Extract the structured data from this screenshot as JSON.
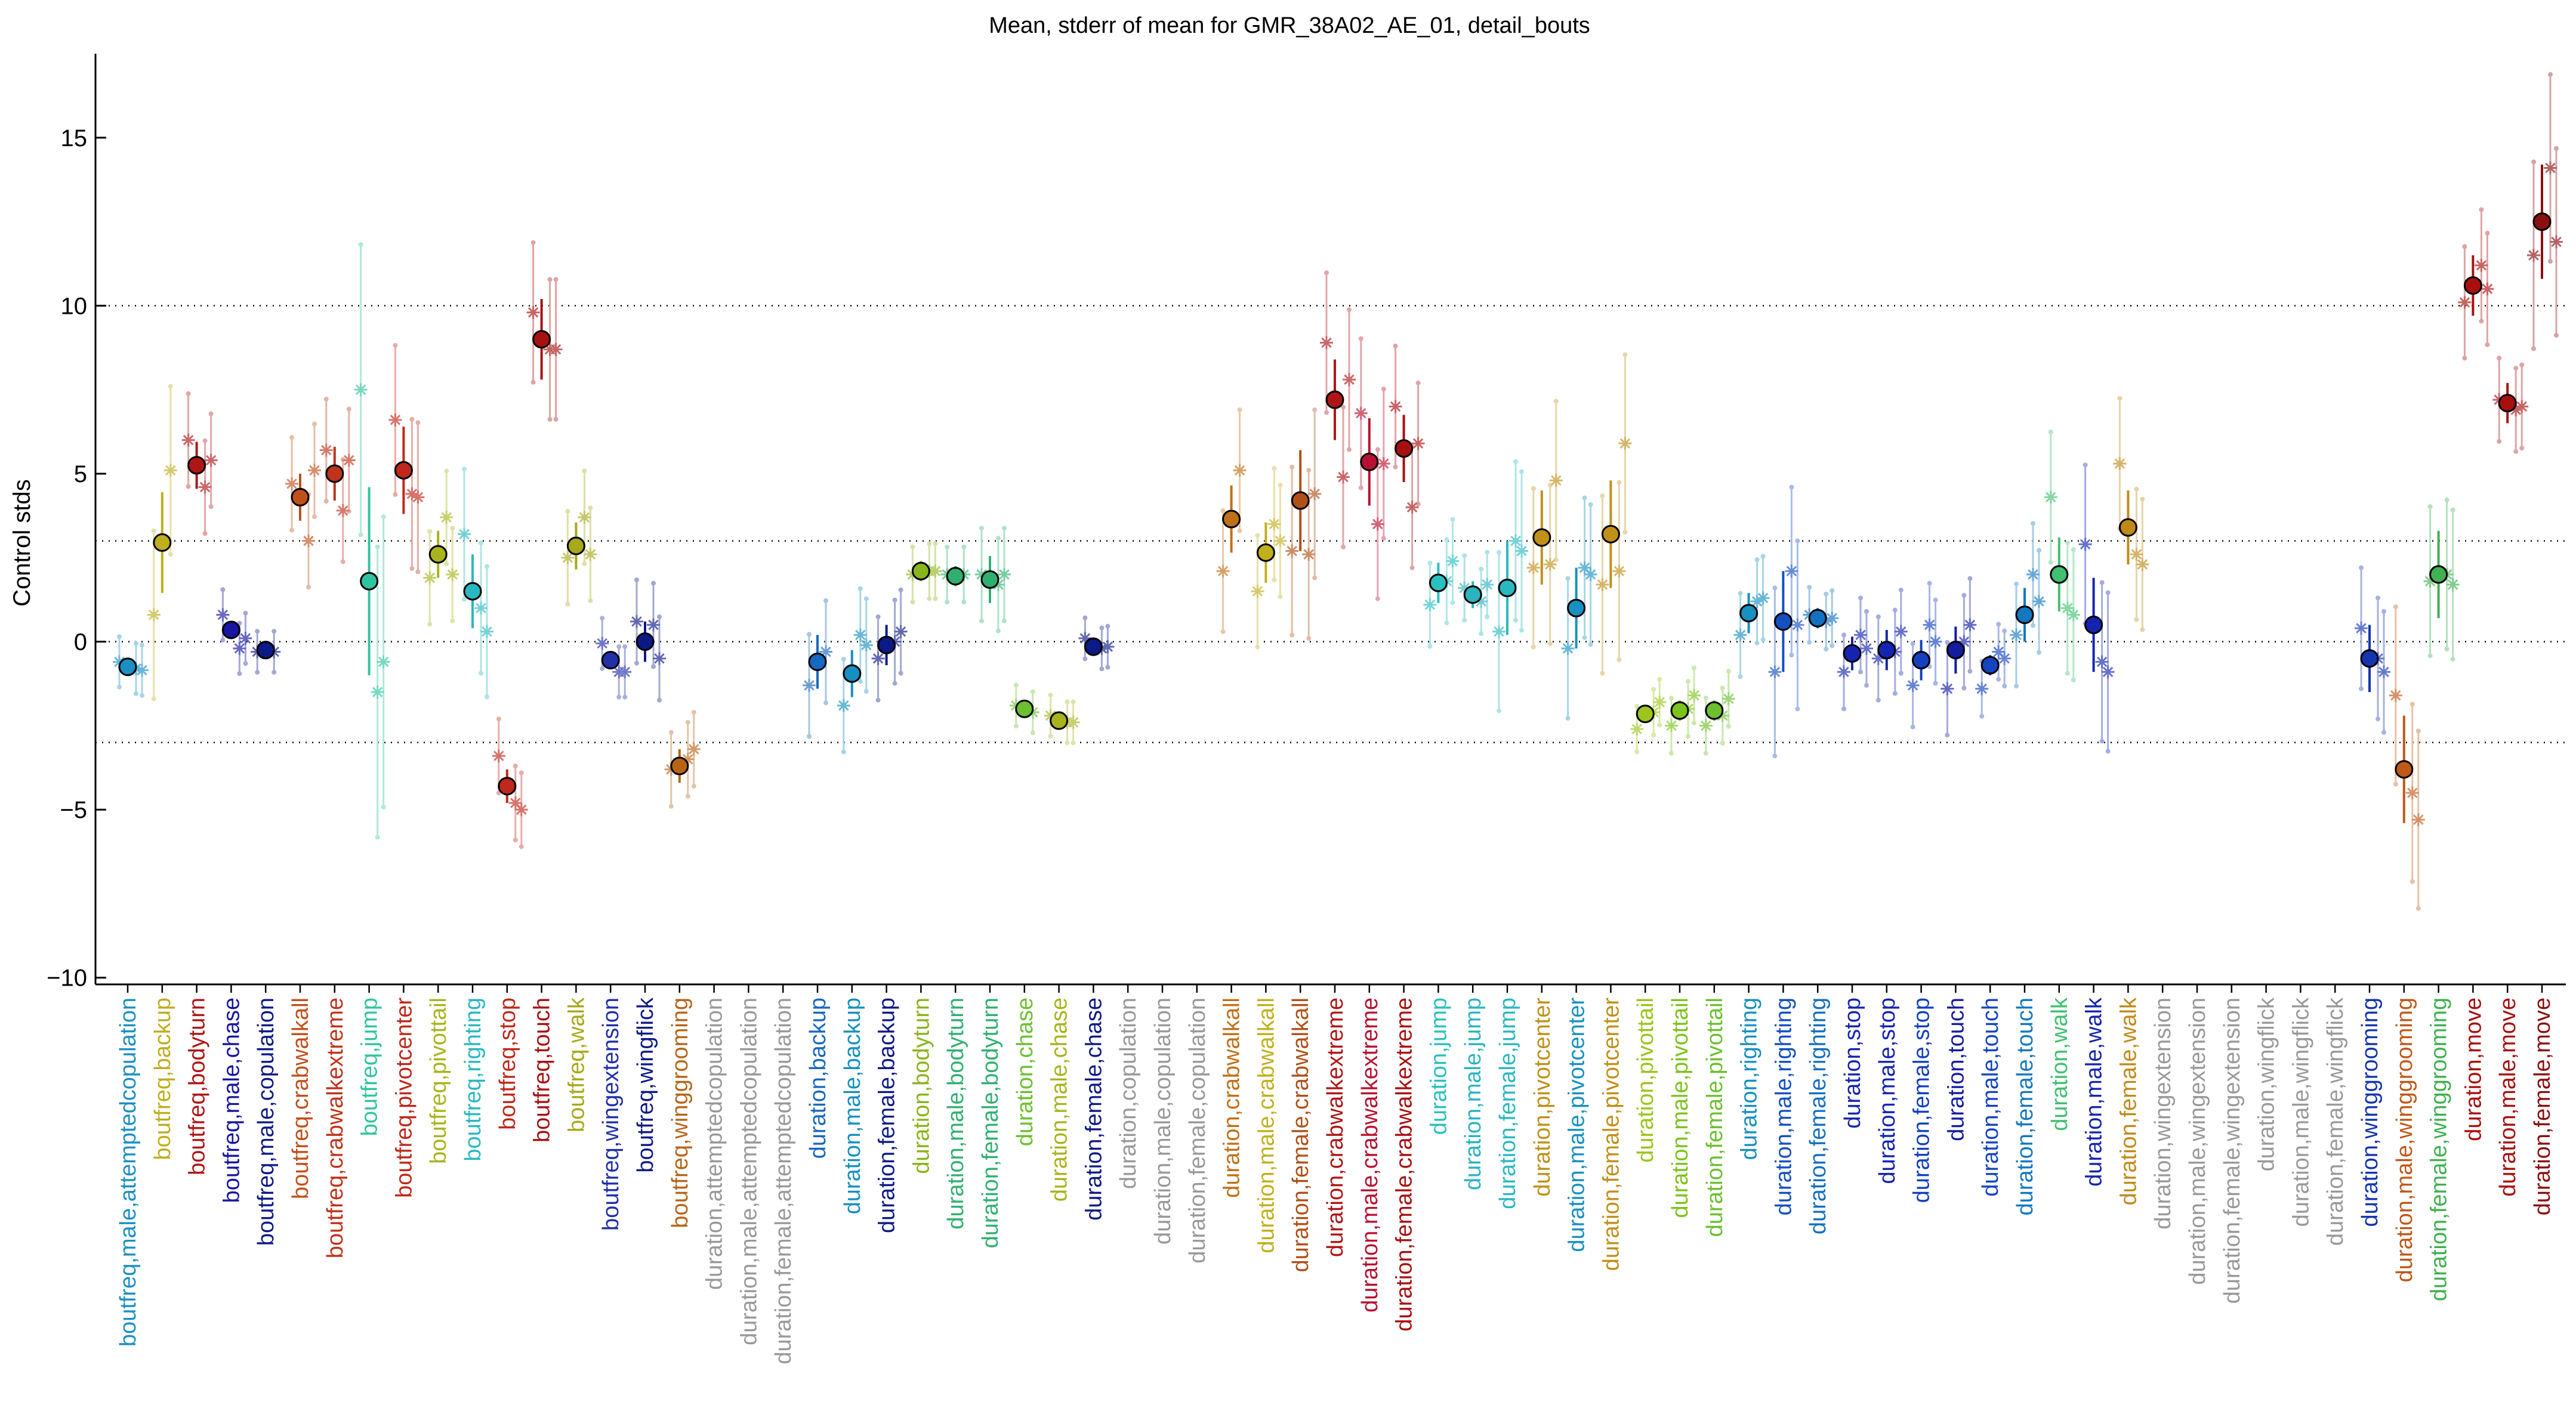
{
  "chart_data": {
    "type": "scatter",
    "title": "Mean, stderr of mean for GMR_38A02_AE_01, detail_bouts",
    "ylabel": "Control stds",
    "xlabel": "",
    "ylim": [
      -10.2,
      17.5
    ],
    "yticks": [
      -10,
      -5,
      0,
      5,
      10,
      15
    ],
    "reference_lines": [
      10,
      3,
      0,
      -3
    ],
    "grid": false,
    "categories": [
      "boutfreq,male,attemptedcopulation",
      "boutfreq,backup",
      "boutfreq,bodyturn",
      "boutfreq,male,chase",
      "boutfreq,male,copulation",
      "boutfreq,crabwalkall",
      "boutfreq,crabwalkextreme",
      "boutfreq,jump",
      "boutfreq,pivotcenter",
      "boutfreq,pivottail",
      "boutfreq,righting",
      "boutfreq,stop",
      "boutfreq,touch",
      "boutfreq,walk",
      "boutfreq,wingextension",
      "boutfreq,wingflick",
      "boutfreq,winggrooming",
      "duration,attemptedcopulation",
      "duration,male,attemptedcopulation",
      "duration,female,attemptedcopulation",
      "duration,backup",
      "duration,male,backup",
      "duration,female,backup",
      "duration,bodyturn",
      "duration,male,bodyturn",
      "duration,female,bodyturn",
      "duration,chase",
      "duration,male,chase",
      "duration,female,chase",
      "duration,copulation",
      "duration,male,copulation",
      "duration,female,copulation",
      "duration,crabwalkall",
      "duration,male,crabwalkall",
      "duration,female,crabwalkall",
      "duration,crabwalkextreme",
      "duration,male,crabwalkextreme",
      "duration,female,crabwalkextreme",
      "duration,jump",
      "duration,male,jump",
      "duration,female,jump",
      "duration,pivotcenter",
      "duration,male,pivotcenter",
      "duration,female,pivotcenter",
      "duration,pivottail",
      "duration,male,pivottail",
      "duration,female,pivottail",
      "duration,righting",
      "duration,male,righting",
      "duration,female,righting",
      "duration,stop",
      "duration,male,stop",
      "duration,female,stop",
      "duration,touch",
      "duration,male,touch",
      "duration,female,touch",
      "duration,walk",
      "duration,male,walk",
      "duration,female,walk",
      "duration,wingextension",
      "duration,male,wingextension",
      "duration,female,wingextension",
      "duration,wingflick",
      "duration,male,wingflick",
      "duration,female,wingflick",
      "duration,winggrooming",
      "duration,male,winggrooming",
      "duration,female,winggrooming",
      "duration,move",
      "duration,male,move",
      "duration,female,move"
    ],
    "label_colors": [
      "#1b8fc4",
      "#bfae1d",
      "#b01515",
      "#1616a0",
      "#0c1a86",
      "#c0501b",
      "#c0321b",
      "#2fc4a0",
      "#c0281b",
      "#a8b41b",
      "#2ab8c0",
      "#c0281b",
      "#a81010",
      "#a8a81b",
      "#2030a8",
      "#0c1a86",
      "#b86418",
      "#999999",
      "#999999",
      "#999999",
      "#1668c0",
      "#1690c0",
      "#0c1a86",
      "#8ab41b",
      "#30b070",
      "#30b070",
      "#6cc030",
      "#a8b41b",
      "#0c1a86",
      "#999999",
      "#999999",
      "#999999",
      "#c07018",
      "#c0b01b",
      "#b05018",
      "#b01515",
      "#b81030",
      "#a81010",
      "#2ac0c0",
      "#2ab4c0",
      "#2ab8c0",
      "#c09018",
      "#1890c0",
      "#c09018",
      "#9cc41b",
      "#7cc41b",
      "#6cc030",
      "#1890c0",
      "#1450c0",
      "#1470c0",
      "#1424b0",
      "#1424b0",
      "#1440c0",
      "#141ca0",
      "#1444c0",
      "#1478c0",
      "#40c070",
      "#1424b0",
      "#c08a18",
      "#999999",
      "#999999",
      "#999999",
      "#999999",
      "#999999",
      "#999999",
      "#1434b0",
      "#c05818",
      "#40b050",
      "#a81010",
      "#a81010",
      "#8a1010"
    ],
    "series": [
      {
        "role": "mean",
        "values": [
          -0.75,
          2.95,
          5.25,
          0.35,
          -0.25,
          4.3,
          5.0,
          1.8,
          5.1,
          2.6,
          1.5,
          -4.3,
          9.0,
          2.85,
          -0.55,
          0.0,
          -3.7,
          null,
          null,
          null,
          -0.6,
          -0.95,
          -0.1,
          2.1,
          1.95,
          1.85,
          -2.0,
          -2.35,
          -0.15,
          null,
          null,
          null,
          3.65,
          2.65,
          4.2,
          7.2,
          5.35,
          5.75,
          1.75,
          1.4,
          1.6,
          3.1,
          1.0,
          3.2,
          -2.15,
          -2.05,
          -2.05,
          0.85,
          0.6,
          0.7,
          -0.35,
          -0.25,
          -0.55,
          -0.25,
          -0.7,
          0.8,
          2.0,
          0.5,
          3.4,
          null,
          null,
          null,
          null,
          null,
          null,
          -0.5,
          -3.8,
          2.0,
          10.6,
          7.1,
          12.5
        ],
        "stderr": [
          0.25,
          1.5,
          0.7,
          0.25,
          0.15,
          0.7,
          0.8,
          2.8,
          1.3,
          0.7,
          1.1,
          0.5,
          1.2,
          0.7,
          0.25,
          0.6,
          0.5,
          null,
          null,
          null,
          0.8,
          0.7,
          0.6,
          0.3,
          0.3,
          0.7,
          0.15,
          0.15,
          0.15,
          null,
          null,
          null,
          1.0,
          0.9,
          1.5,
          1.2,
          1.3,
          1.0,
          0.6,
          0.4,
          1.4,
          1.4,
          1.2,
          1.6,
          0.2,
          0.3,
          0.3,
          0.6,
          1.5,
          0.3,
          0.5,
          0.6,
          0.6,
          0.7,
          0.3,
          0.8,
          1.1,
          1.4,
          1.1,
          null,
          null,
          null,
          null,
          null,
          null,
          1.0,
          1.6,
          1.3,
          0.9,
          0.6,
          1.7
        ]
      },
      {
        "role": "replicate_a",
        "values": [
          -0.6,
          0.8,
          6.0,
          0.8,
          -0.3,
          4.7,
          5.7,
          7.5,
          6.6,
          1.9,
          3.2,
          -3.4,
          9.8,
          2.5,
          -0.05,
          0.6,
          -3.8,
          null,
          null,
          null,
          -1.3,
          -1.9,
          -0.5,
          2.0,
          2.0,
          2.0,
          -1.9,
          -2.2,
          0.1,
          null,
          null,
          null,
          2.1,
          1.5,
          2.7,
          8.9,
          6.8,
          7.0,
          1.1,
          1.6,
          0.3,
          2.2,
          -0.2,
          1.7,
          -2.6,
          -2.5,
          -2.5,
          0.2,
          -0.9,
          0.8,
          -0.9,
          -0.5,
          -1.3,
          -1.4,
          -1.4,
          0.2,
          4.3,
          2.9,
          5.3,
          null,
          null,
          null,
          null,
          null,
          null,
          0.4,
          -1.6,
          1.8,
          10.1,
          7.2,
          11.5
        ]
      },
      {
        "role": "replicate_b",
        "values": [
          -0.8,
          5.1,
          4.6,
          -0.2,
          -0.3,
          3.0,
          3.9,
          -1.5,
          4.4,
          3.7,
          1.0,
          -4.8,
          8.7,
          3.7,
          -0.9,
          0.5,
          -3.5,
          null,
          null,
          null,
          -0.3,
          0.2,
          0.0,
          2.1,
          2.0,
          1.7,
          -2.1,
          -2.4,
          -0.2,
          null,
          null,
          null,
          5.1,
          3.5,
          2.6,
          4.9,
          3.5,
          4.0,
          1.8,
          1.2,
          3.0,
          2.3,
          2.2,
          2.1,
          -2.1,
          -2.0,
          -2.2,
          1.2,
          2.1,
          0.6,
          0.2,
          -0.3,
          0.5,
          0.0,
          -0.3,
          2.0,
          1.0,
          -0.6,
          2.6,
          null,
          null,
          null,
          null,
          null,
          null,
          -0.5,
          -4.5,
          2.0,
          11.2,
          6.9,
          14.1
        ]
      },
      {
        "role": "replicate_c",
        "values": [
          -0.85,
          null,
          5.4,
          0.1,
          null,
          5.1,
          5.4,
          -0.6,
          4.3,
          2.0,
          0.3,
          -5.0,
          8.7,
          2.6,
          -0.9,
          -0.5,
          -3.2,
          null,
          null,
          null,
          null,
          -0.1,
          0.3,
          2.1,
          null,
          2.0,
          null,
          -2.4,
          -0.15,
          null,
          null,
          null,
          null,
          3.0,
          4.4,
          7.8,
          5.3,
          5.9,
          2.4,
          1.7,
          2.7,
          4.8,
          2.0,
          5.9,
          -1.8,
          -1.6,
          -1.7,
          1.3,
          0.5,
          0.7,
          -0.2,
          0.3,
          0.0,
          0.5,
          -0.5,
          1.2,
          0.8,
          -0.9,
          2.3,
          null,
          null,
          null,
          null,
          null,
          null,
          -0.9,
          -5.3,
          1.7,
          10.5,
          7.0,
          11.9
        ]
      }
    ]
  }
}
